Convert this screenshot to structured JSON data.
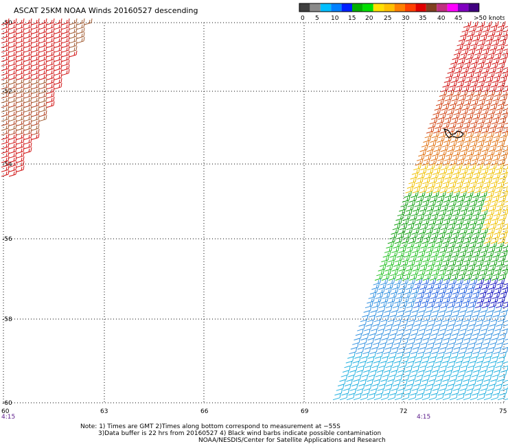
{
  "header": {
    "title": "ASCAT 25KM NOAA Winds 20160527 descending"
  },
  "legend": {
    "colors": [
      "#404040",
      "#8a8a8a",
      "#00bfff",
      "#0080ff",
      "#0020ff",
      "#00b000",
      "#00e000",
      "#ffe000",
      "#ffc000",
      "#ff8000",
      "#ff4000",
      "#e00000",
      "#804020",
      "#c03080",
      "#ff00ff",
      "#8000c0",
      "#400080"
    ],
    "labels": [
      "0",
      "5",
      "10",
      "15",
      "20",
      "25",
      "30",
      "35",
      "40",
      "45",
      ">50 knots"
    ]
  },
  "axes": {
    "lat_labels": [
      "-50",
      "-52",
      "-54",
      "-56",
      "-58",
      "-60"
    ],
    "lon_labels": [
      "60",
      "63",
      "66",
      "69",
      "72",
      "75"
    ],
    "time_labels": [
      "4:15",
      "4:15"
    ]
  },
  "notes": {
    "line1": "Note: 1) Times are GMT 2)Times along bottom correspond to measurement at −55S",
    "line2": "3)Data buffer is 22 hrs from 20160527 4) Black wind barbs indicate possible contamination",
    "line3": "NOAA/NESDIS/Center for Satellite Applications and Research"
  }
}
